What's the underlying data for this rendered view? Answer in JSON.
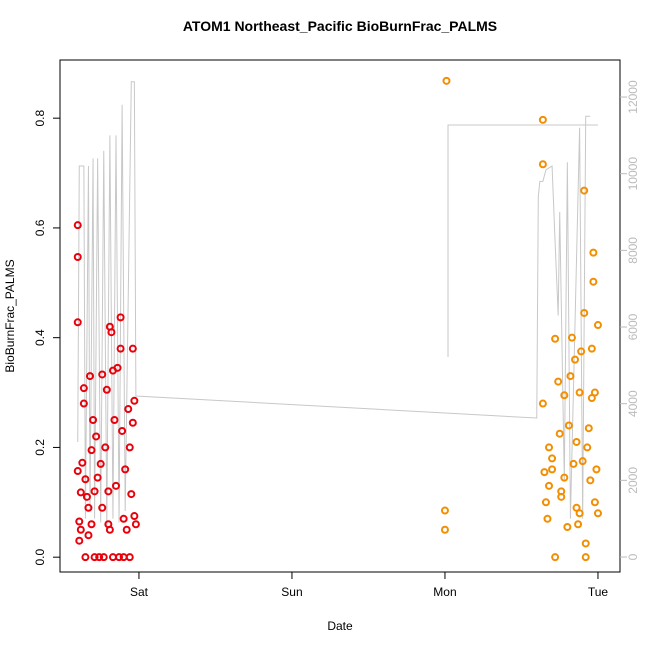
{
  "chart_data": {
    "type": "scatter",
    "title": "ATOM1 Northeast_Pacific BioBurnFrac_PALMS",
    "x_label": "Date",
    "y_label": "BioBurnFrac_PALMS",
    "xlim": [
      -0.516,
      3.144
    ],
    "xticks": [
      {
        "value": 0,
        "label": "Sat"
      },
      {
        "value": 1,
        "label": "Sun"
      },
      {
        "value": 2,
        "label": "Mon"
      },
      {
        "value": 3,
        "label": "Tue"
      }
    ],
    "ylim": [
      -0.027,
      0.906
    ],
    "yticks": [
      {
        "value": 0,
        "label": "0.0"
      },
      {
        "value": 0.2,
        "label": "0.2"
      },
      {
        "value": 0.4,
        "label": "0.4"
      },
      {
        "value": 0.6,
        "label": "0.6"
      },
      {
        "value": 0.8,
        "label": "0.8"
      }
    ],
    "y2lim": [
      -391,
      12966
    ],
    "y2ticks": [
      0,
      2000,
      4000,
      6000,
      8000,
      10000,
      12000
    ],
    "y2_color": "#bbbbbb",
    "series": [
      {
        "color": "#e8000b",
        "x": [
          -0.4,
          -0.4,
          -0.4,
          -0.4,
          -0.39,
          -0.39,
          -0.38,
          -0.38,
          -0.37,
          -0.36,
          -0.36,
          -0.35,
          -0.35,
          -0.34,
          -0.33,
          -0.32,
          -0.31,
          -0.31,
          -0.3,
          -0.29,
          -0.29,
          -0.28,
          -0.27,
          -0.26,
          -0.25,
          -0.24,
          -0.24,
          -0.23,
          -0.22,
          -0.21,
          -0.2,
          -0.19,
          -0.19,
          -0.18,
          -0.17,
          -0.17,
          -0.16,
          -0.15,
          -0.14,
          -0.13,
          -0.12,
          -0.12,
          -0.11,
          -0.1,
          -0.1,
          -0.09,
          -0.08,
          -0.07,
          -0.06,
          -0.05,
          -0.04,
          -0.04,
          -0.03,
          -0.02,
          -0.03,
          -0.06,
          -0.2,
          -0.33
        ],
        "values": [
          0.605,
          0.547,
          0.428,
          0.157,
          0.065,
          0.03,
          0.118,
          0.05,
          0.172,
          0.308,
          0.28,
          0.0,
          0.142,
          0.11,
          0.09,
          0.33,
          0.06,
          0.195,
          0.25,
          0.0,
          0.12,
          0.22,
          0.145,
          0.0,
          0.17,
          0.09,
          0.333,
          0.0,
          0.2,
          0.305,
          0.12,
          0.42,
          0.05,
          0.41,
          0.34,
          0.0,
          0.25,
          0.13,
          0.345,
          0.0,
          0.437,
          0.38,
          0.23,
          0.0,
          0.07,
          0.16,
          0.05,
          0.27,
          0.0,
          0.115,
          0.38,
          0.245,
          0.285,
          0.06,
          0.075,
          0.2,
          0.06,
          0.04
        ]
      },
      {
        "color": "#f28e00",
        "x": [
          2.01,
          2.0,
          2.0,
          2.64,
          2.64,
          2.64,
          2.65,
          2.66,
          2.67,
          2.68,
          2.7,
          2.72,
          2.72,
          2.74,
          2.75,
          2.76,
          2.78,
          2.8,
          2.81,
          2.83,
          2.84,
          2.85,
          2.86,
          2.87,
          2.88,
          2.89,
          2.91,
          2.91,
          2.92,
          2.92,
          2.93,
          2.94,
          2.95,
          2.96,
          2.97,
          2.97,
          2.98,
          2.99,
          3.0,
          3.0,
          2.78,
          2.68,
          2.76,
          2.86,
          2.9,
          2.96,
          2.82,
          2.7,
          2.98,
          2.88
        ],
        "values": [
          0.868,
          0.085,
          0.05,
          0.797,
          0.716,
          0.28,
          0.155,
          0.1,
          0.07,
          0.13,
          0.18,
          0.0,
          0.398,
          0.32,
          0.225,
          0.12,
          0.295,
          0.055,
          0.24,
          0.4,
          0.17,
          0.36,
          0.09,
          0.06,
          0.3,
          0.375,
          0.668,
          0.445,
          0.025,
          0.0,
          0.2,
          0.235,
          0.14,
          0.38,
          0.555,
          0.502,
          0.3,
          0.16,
          0.423,
          0.08,
          0.145,
          0.2,
          0.11,
          0.21,
          0.175,
          0.29,
          0.33,
          0.16,
          0.1,
          0.08
        ]
      },
      {
        "color": "#c8c8c8",
        "axis": "y2",
        "line": true,
        "x": [
          -0.4,
          -0.39,
          -0.36,
          -0.35,
          -0.33,
          -0.32,
          -0.3,
          -0.29,
          -0.27,
          -0.25,
          -0.23,
          -0.21,
          -0.19,
          -0.17,
          -0.15,
          -0.13,
          -0.11,
          -0.09,
          -0.05,
          -0.03,
          -0.02,
          2.6,
          2.61,
          2.62,
          2.64,
          2.66,
          2.7,
          2.72,
          2.74,
          2.75,
          2.78,
          2.8,
          2.82,
          2.88,
          2.9,
          2.92,
          2.95,
          null,
          2.02,
          2.02,
          3.0
        ],
        "values": [
          3000,
          10200,
          10200,
          1000,
          10200,
          1200,
          10400,
          1000,
          10400,
          900,
          10600,
          800,
          11000,
          1000,
          11000,
          900,
          11800,
          1200,
          12400,
          12400,
          4200,
          3626,
          9400,
          9800,
          9800,
          10100,
          10200,
          8200,
          6300,
          9000,
          2000,
          10300,
          1000,
          11200,
          1000,
          11500,
          11500,
          null,
          5218,
          11270,
          11270
        ]
      }
    ]
  }
}
